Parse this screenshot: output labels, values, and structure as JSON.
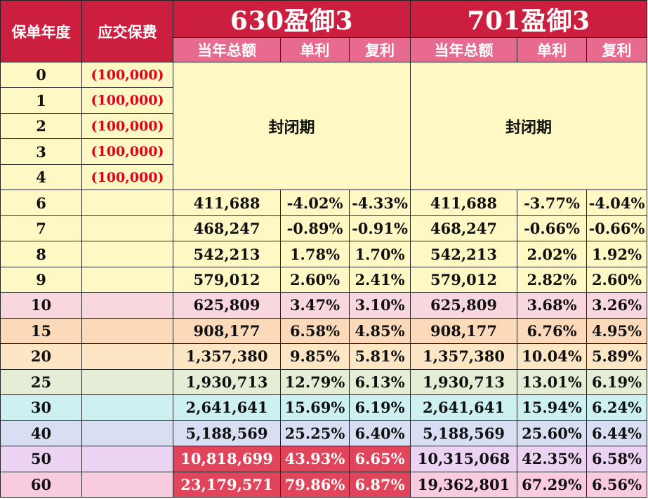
{
  "header": {
    "year_label": "保单年度",
    "premium_label": "应交保费",
    "products": [
      {
        "name": "630盈御3",
        "cols": [
          "当年总额",
          "单利",
          "复利"
        ]
      },
      {
        "name": "701盈御3",
        "cols": [
          "当年总额",
          "单利",
          "复利"
        ]
      }
    ]
  },
  "closed_label": "封闭期",
  "closed_rows": [
    {
      "year": "0",
      "premium": "(100,000)"
    },
    {
      "year": "1",
      "premium": "(100,000)"
    },
    {
      "year": "2",
      "premium": "(100,000)"
    },
    {
      "year": "3",
      "premium": "(100,000)"
    },
    {
      "year": "4",
      "premium": "(100,000)"
    }
  ],
  "rows": [
    {
      "year": "6",
      "premium": "",
      "bg": "#fdf8c4",
      "p1": [
        "411,688",
        "-4.02%",
        "-4.33%"
      ],
      "p2": [
        "411,688",
        "-3.77%",
        "-4.04%"
      ]
    },
    {
      "year": "7",
      "premium": "",
      "bg": "#fdf8c4",
      "p1": [
        "468,247",
        "-0.89%",
        "-0.91%"
      ],
      "p2": [
        "468,247",
        "-0.66%",
        "-0.66%"
      ]
    },
    {
      "year": "8",
      "premium": "",
      "bg": "#fdf8c4",
      "p1": [
        "542,213",
        "1.78%",
        "1.70%"
      ],
      "p2": [
        "542,213",
        "2.02%",
        "1.92%"
      ]
    },
    {
      "year": "9",
      "premium": "",
      "bg": "#fdf8c4",
      "p1": [
        "579,012",
        "2.60%",
        "2.41%"
      ],
      "p2": [
        "579,012",
        "2.82%",
        "2.60%"
      ]
    },
    {
      "year": "10",
      "premium": "",
      "bg": "#f8d7df",
      "p1": [
        "625,809",
        "3.47%",
        "3.10%"
      ],
      "p2": [
        "625,809",
        "3.68%",
        "3.26%"
      ]
    },
    {
      "year": "15",
      "premium": "",
      "bg": "#fcd9b9",
      "p1": [
        "908,177",
        "6.58%",
        "4.85%"
      ],
      "p2": [
        "908,177",
        "6.76%",
        "4.95%"
      ]
    },
    {
      "year": "20",
      "premium": "",
      "bg": "#fde6c4",
      "p1": [
        "1,357,380",
        "9.85%",
        "5.81%"
      ],
      "p2": [
        "1,357,380",
        "10.04%",
        "5.89%"
      ]
    },
    {
      "year": "25",
      "premium": "",
      "bg": "#e4eed6",
      "p1": [
        "1,930,713",
        "12.79%",
        "6.13%"
      ],
      "p2": [
        "1,930,713",
        "13.01%",
        "6.19%"
      ]
    },
    {
      "year": "30",
      "premium": "",
      "bg": "#cdf1f0",
      "p1": [
        "2,641,641",
        "15.69%",
        "6.19%"
      ],
      "p2": [
        "2,641,641",
        "15.94%",
        "6.24%"
      ]
    },
    {
      "year": "40",
      "premium": "",
      "bg": "#d8dff2",
      "p1": [
        "5,188,569",
        "25.25%",
        "6.40%"
      ],
      "p2": [
        "5,188,569",
        "25.60%",
        "6.44%"
      ]
    },
    {
      "year": "50",
      "premium": "",
      "bg": "#edd3f3",
      "highlight_p1": true,
      "p1": [
        "10,818,699",
        "43.93%",
        "6.65%"
      ],
      "p2": [
        "10,315,068",
        "42.35%",
        "6.58%"
      ]
    },
    {
      "year": "60",
      "premium": "",
      "bg": "#f9cbe1",
      "highlight_p1": true,
      "p1": [
        "23,179,571",
        "79.86%",
        "6.87%"
      ],
      "p2": [
        "19,362,801",
        "67.29%",
        "6.56%"
      ]
    }
  ]
}
